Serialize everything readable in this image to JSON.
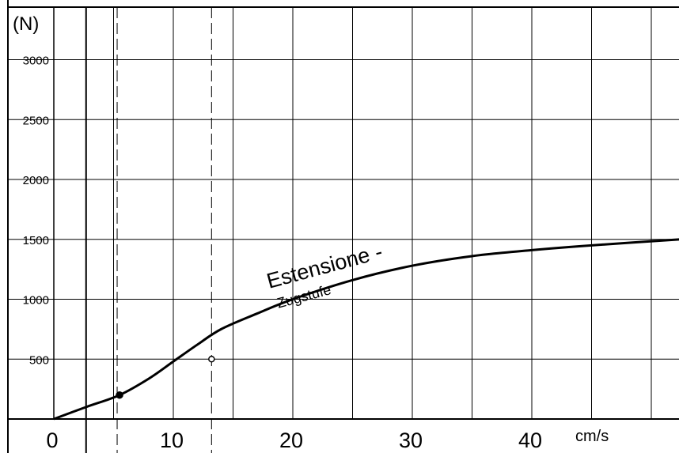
{
  "chart_data": {
    "type": "line",
    "title": "",
    "y_unit_label": "(N)",
    "x_unit_label": "cm/s",
    "annotation": {
      "line1": "Estensione -",
      "line2": "Zugstufe"
    },
    "xlim": [
      0,
      52.5
    ],
    "ylim": [
      0,
      3500
    ],
    "x_ticks": [
      0,
      10,
      20,
      30,
      40
    ],
    "y_ticks": [
      500,
      1000,
      1500,
      2000,
      2500,
      3000
    ],
    "x_grid": [
      0,
      5,
      10,
      15,
      20,
      25,
      30,
      35,
      40,
      45,
      50
    ],
    "y_grid": [
      500,
      1000,
      1500,
      2000,
      2500,
      3000
    ],
    "grid": true,
    "reference_lines": {
      "solid_x": 2.7,
      "dashed_x": [
        5.3,
        13.2
      ]
    },
    "series": [
      {
        "x": [
          0,
          2.7,
          5.5,
          8,
          10,
          12,
          14,
          17,
          20,
          25,
          30,
          35,
          40,
          45,
          52.5
        ],
        "y": [
          0,
          100,
          200,
          340,
          480,
          620,
          750,
          880,
          1000,
          1160,
          1280,
          1360,
          1410,
          1450,
          1500
        ]
      }
    ],
    "markers": [
      {
        "x": 5.5,
        "y": 200,
        "style": "filled"
      },
      {
        "x": 13.2,
        "y": 500,
        "style": "open"
      }
    ]
  }
}
